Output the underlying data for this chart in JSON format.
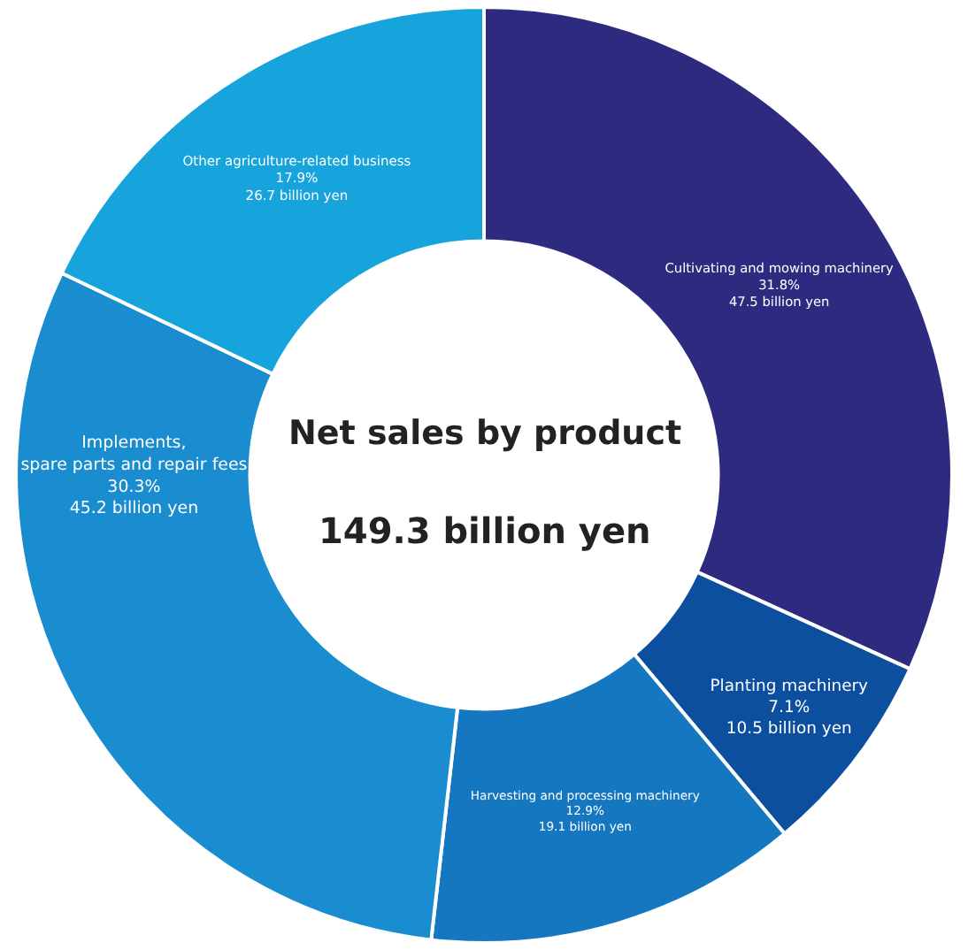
{
  "chart_data": {
    "type": "donut",
    "title": "Net sales by product",
    "subtitle": "149.3 billion yen",
    "categories": [
      "Cultivating and mowing machinery",
      "Planting machinery",
      "Harvesting and processing machinery",
      "Implements, spare parts and repair fees",
      "Other agriculture-related business"
    ],
    "values": [
      31.8,
      7.1,
      12.9,
      30.3,
      17.9
    ],
    "colors": [
      "#2e2a80",
      "#0c4f9e",
      "#1577c0",
      "#1a8dd0",
      "#17a3dc"
    ],
    "value_labels": [
      "31.8%\n47.5 billion yen",
      "7.1%\n10.5 billion yen",
      "12.9%\n19.1 billion yen",
      "30.3%\n45.2 billion yen",
      "17.9%\n26.7 billion yen"
    ],
    "legend": false
  }
}
